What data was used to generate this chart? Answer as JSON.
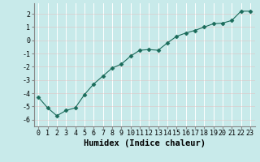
{
  "x": [
    0,
    1,
    2,
    3,
    4,
    5,
    6,
    7,
    8,
    9,
    10,
    11,
    12,
    13,
    14,
    15,
    16,
    17,
    18,
    19,
    20,
    21,
    22,
    23
  ],
  "y": [
    -4.3,
    -5.1,
    -5.7,
    -5.3,
    -5.1,
    -4.1,
    -3.3,
    -2.7,
    -2.1,
    -1.8,
    -1.2,
    -0.75,
    -0.7,
    -0.75,
    -0.2,
    0.3,
    0.55,
    0.75,
    1.0,
    1.25,
    1.3,
    1.5,
    2.2,
    2.2
  ],
  "line_color": "#1a6b5a",
  "marker": "D",
  "marker_size": 2.5,
  "bg_color": "#c8eaea",
  "grid_color": "#e8e8e8",
  "xlabel": "Humidex (Indice chaleur)",
  "ylim": [
    -6.5,
    2.8
  ],
  "xlim": [
    -0.5,
    23.5
  ],
  "yticks": [
    -6,
    -5,
    -4,
    -3,
    -2,
    -1,
    0,
    1,
    2
  ],
  "xticks": [
    0,
    1,
    2,
    3,
    4,
    5,
    6,
    7,
    8,
    9,
    10,
    11,
    12,
    13,
    14,
    15,
    16,
    17,
    18,
    19,
    20,
    21,
    22,
    23
  ],
  "tick_fontsize": 6,
  "label_fontsize": 7.5
}
